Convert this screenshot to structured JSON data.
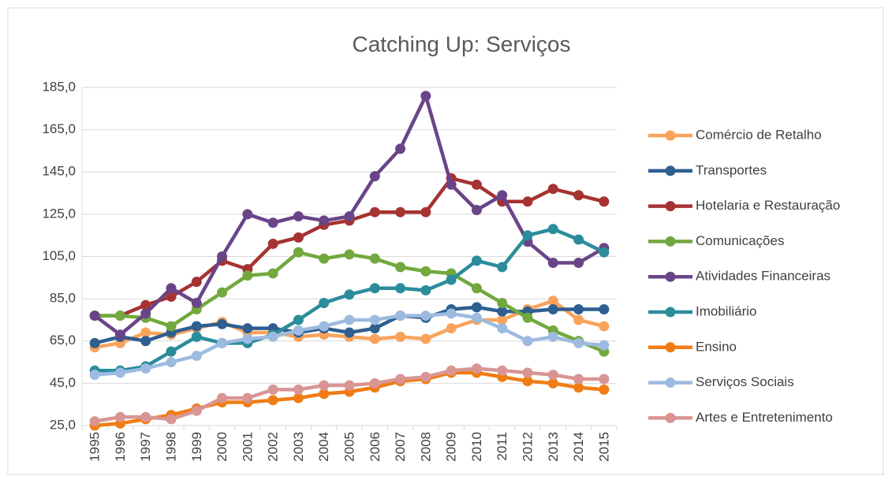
{
  "chart_data": {
    "type": "line",
    "title": "Catching Up: Serviços",
    "categories": [
      "1995",
      "1996",
      "1997",
      "1998",
      "1999",
      "2000",
      "2001",
      "2002",
      "2003",
      "2004",
      "2005",
      "2006",
      "2007",
      "2008",
      "2009",
      "2010",
      "2011",
      "2012",
      "2013",
      "2014",
      "2015"
    ],
    "series": [
      {
        "name": "Comércio de Retalho",
        "color": "#f8a35c",
        "values": [
          62,
          64,
          69,
          68,
          71,
          74,
          69,
          69,
          67,
          68,
          67,
          66,
          67,
          66,
          71,
          75,
          75,
          80,
          84,
          75,
          72
        ]
      },
      {
        "name": "Transportes",
        "color": "#2f5f91",
        "values": [
          64,
          67,
          65,
          69,
          72,
          73,
          71,
          71,
          69,
          71,
          69,
          71,
          77,
          76,
          80,
          81,
          79,
          79,
          80,
          80,
          80
        ]
      },
      {
        "name": "Hotelaria e Restauração",
        "color": "#a63232",
        "values": [
          77,
          77,
          82,
          86,
          93,
          103,
          99,
          111,
          114,
          120,
          122,
          126,
          126,
          126,
          142,
          139,
          131,
          131,
          137,
          134,
          131
        ]
      },
      {
        "name": "Comunicações",
        "color": "#72a83e",
        "values": [
          77,
          77,
          76,
          72,
          80,
          88,
          96,
          97,
          107,
          104,
          106,
          104,
          100,
          98,
          97,
          90,
          83,
          76,
          70,
          65,
          60
        ]
      },
      {
        "name": "Atividades Financeiras",
        "color": "#6a4488",
        "values": [
          77,
          68,
          78,
          90,
          83,
          105,
          125,
          121,
          124,
          122,
          124,
          143,
          156,
          181,
          139,
          127,
          134,
          112,
          102,
          102,
          109
        ]
      },
      {
        "name": "Imobiliário",
        "color": "#2b8c9b",
        "values": [
          51,
          51,
          53,
          60,
          67,
          64,
          64,
          68,
          75,
          83,
          87,
          90,
          90,
          89,
          94,
          103,
          100,
          115,
          118,
          113,
          107
        ]
      },
      {
        "name": "Ensino",
        "color": "#f07d14",
        "values": [
          25,
          26,
          28,
          30,
          33,
          36,
          36,
          37,
          38,
          40,
          41,
          43,
          46,
          47,
          50,
          50,
          48,
          46,
          45,
          43,
          42
        ]
      },
      {
        "name": "Serviços Sociais",
        "color": "#9dbbe0",
        "values": [
          49,
          50,
          52,
          55,
          58,
          64,
          66,
          67,
          70,
          72,
          75,
          75,
          77,
          77,
          78,
          76,
          71,
          65,
          67,
          64,
          63
        ]
      },
      {
        "name": "Artes e Entretenimento",
        "color": "#d99594",
        "values": [
          27,
          29,
          29,
          28,
          32,
          38,
          38,
          42,
          42,
          44,
          44,
          45,
          47,
          48,
          51,
          52,
          51,
          50,
          49,
          47,
          47
        ]
      }
    ],
    "ylim": [
      25,
      185
    ],
    "yticks": [
      {
        "value": 25,
        "label": "25,0"
      },
      {
        "value": 45,
        "label": "45,0"
      },
      {
        "value": 65,
        "label": "65,0"
      },
      {
        "value": 85,
        "label": "85,0"
      },
      {
        "value": 105,
        "label": "105,0"
      },
      {
        "value": 125,
        "label": "125,0"
      },
      {
        "value": 145,
        "label": "145,0"
      },
      {
        "value": 165,
        "label": "165,0"
      },
      {
        "value": 185,
        "label": "185,0"
      }
    ],
    "grid": true,
    "legend": "right"
  }
}
